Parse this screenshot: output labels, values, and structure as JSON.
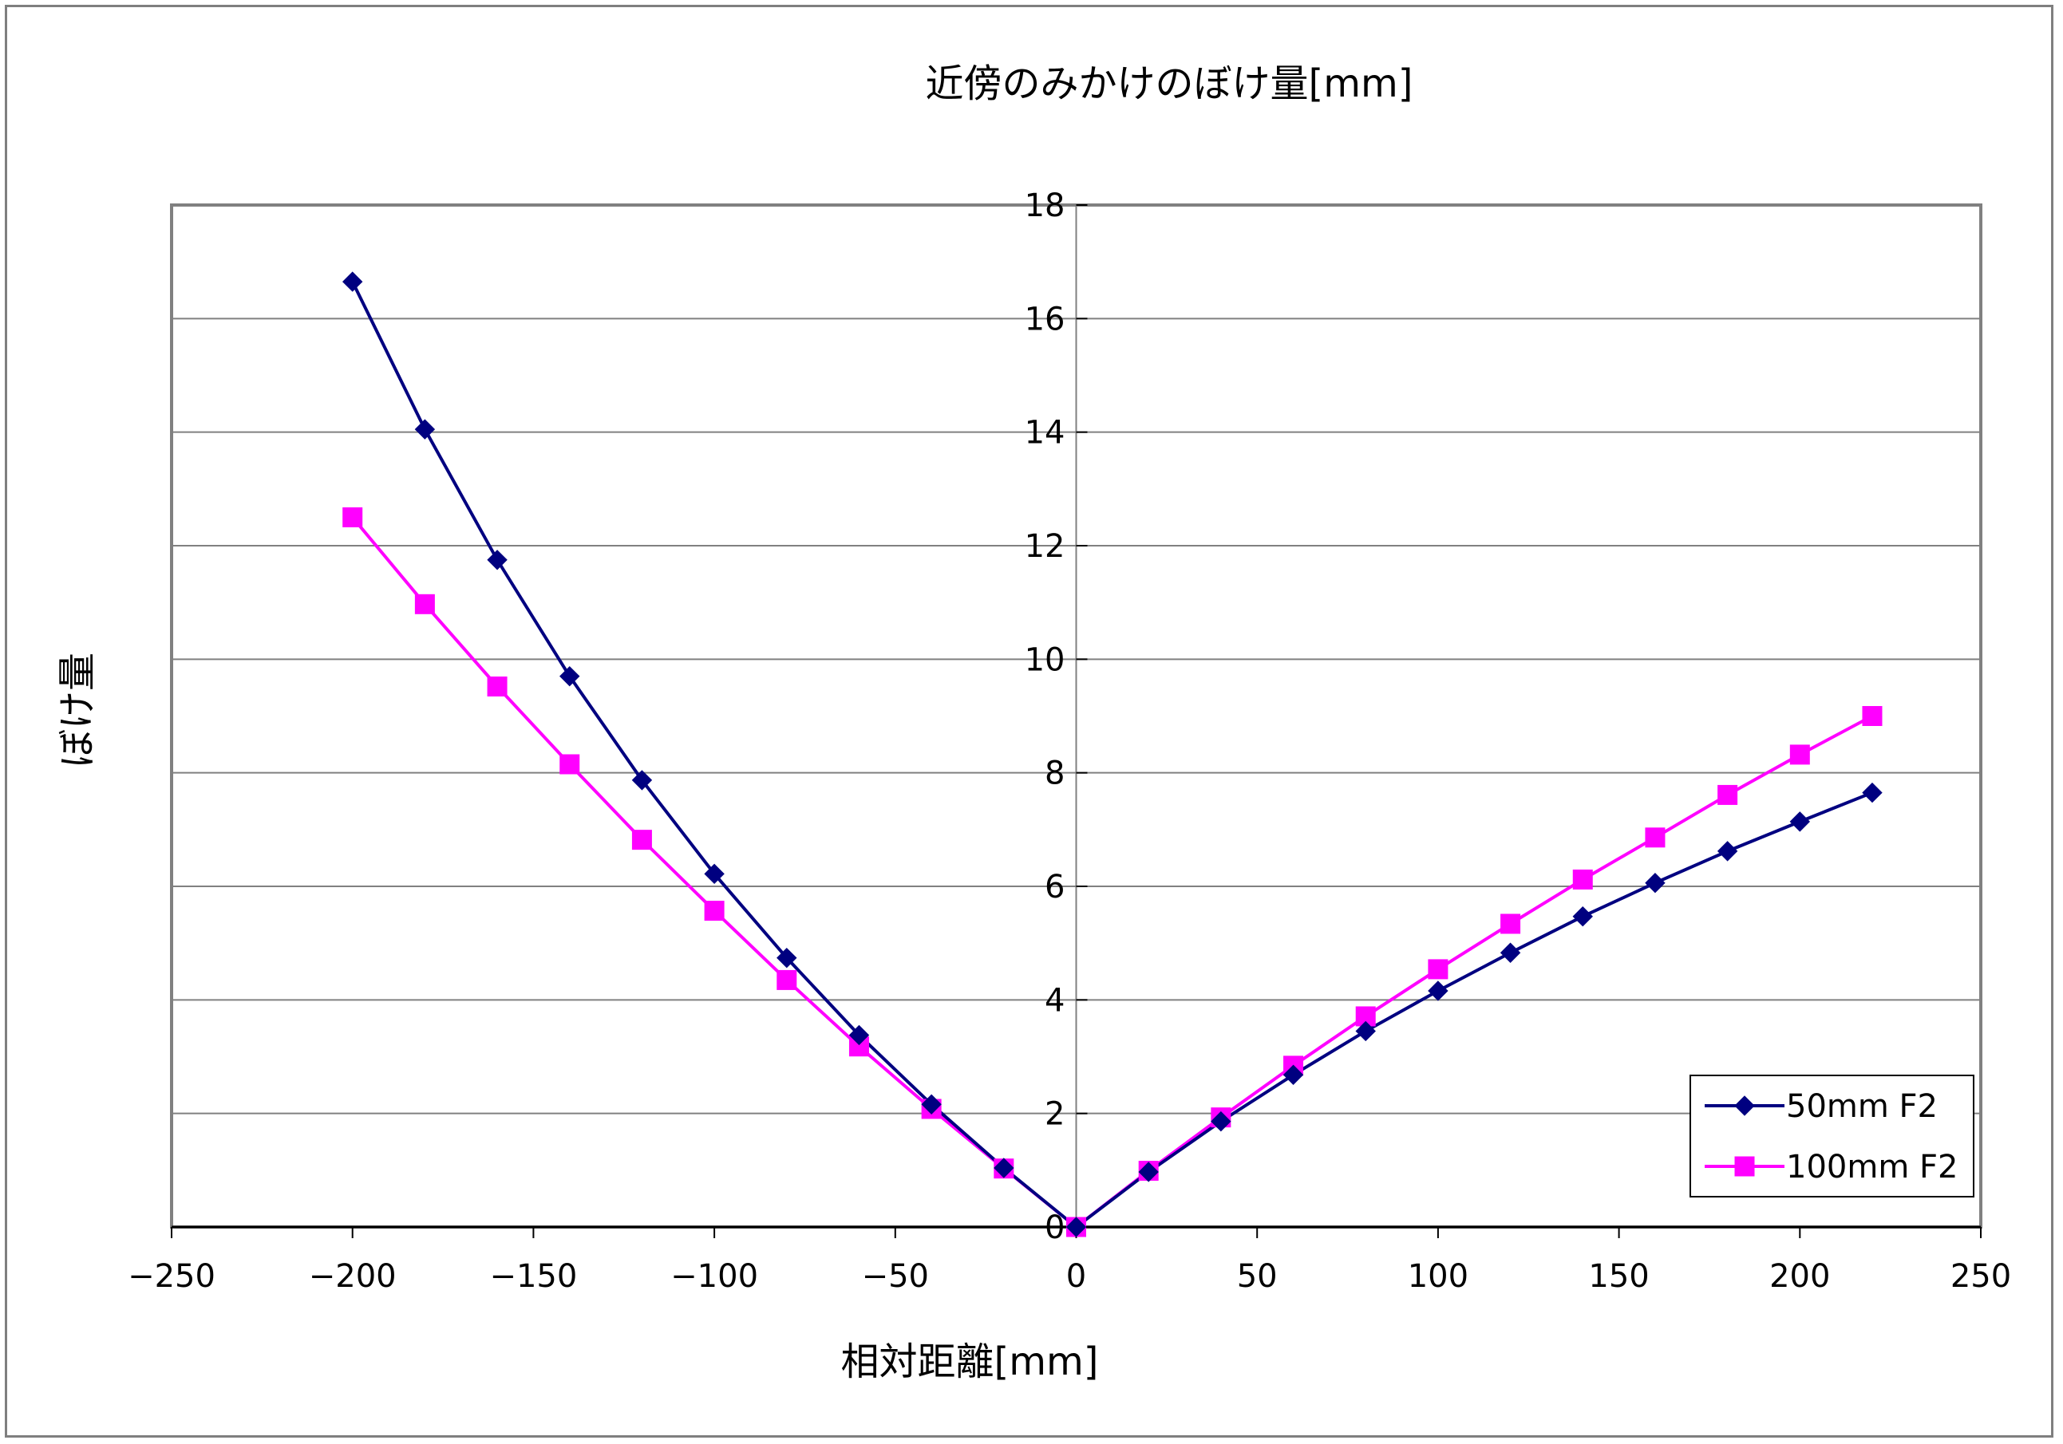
{
  "chart_data": {
    "type": "line",
    "title": "近傍のみかけのぼけ量[mm]",
    "xlabel": "相対距離[mm]",
    "ylabel": "ぼけ量",
    "xlim": [
      -250,
      250
    ],
    "ylim": [
      0,
      18
    ],
    "xticks": [
      -250,
      -200,
      -150,
      -100,
      -50,
      0,
      50,
      100,
      150,
      200,
      250
    ],
    "xtick_labels": [
      "−250",
      "−200",
      "−150",
      "−100",
      "−50",
      "0",
      "50",
      "100",
      "150",
      "200",
      "250"
    ],
    "yticks": [
      0,
      2,
      4,
      6,
      8,
      10,
      12,
      14,
      16,
      18
    ],
    "ytick_labels": [
      "0",
      "2",
      "4",
      "6",
      "8",
      "10",
      "12",
      "14",
      "16",
      "18"
    ],
    "grid": "horizontal",
    "legend_position": "bottom-right",
    "series": [
      {
        "name": "50mm F2",
        "color": "#000080",
        "marker": "diamond",
        "x": [
          -200,
          -180,
          -160,
          -140,
          -120,
          -100,
          -80,
          -60,
          -40,
          -20,
          0,
          20,
          40,
          60,
          80,
          100,
          120,
          140,
          160,
          180,
          200,
          220
        ],
        "y": [
          16.65,
          14.05,
          11.75,
          9.7,
          7.87,
          6.22,
          4.74,
          3.38,
          2.16,
          1.04,
          0,
          0.97,
          1.86,
          2.68,
          3.45,
          4.16,
          4.83,
          5.47,
          6.06,
          6.62,
          7.14,
          7.65
        ]
      },
      {
        "name": "100mm F2",
        "color": "#ff00ff",
        "marker": "square",
        "x": [
          -200,
          -180,
          -160,
          -140,
          -120,
          -100,
          -80,
          -60,
          -40,
          -20,
          0,
          20,
          40,
          60,
          80,
          100,
          120,
          140,
          160,
          180,
          200,
          220
        ],
        "y": [
          12.5,
          10.97,
          9.52,
          8.15,
          6.82,
          5.57,
          4.35,
          3.18,
          2.08,
          1.03,
          0,
          0.99,
          1.93,
          2.84,
          3.71,
          4.54,
          5.34,
          6.12,
          6.86,
          7.61,
          8.32,
          9.0
        ]
      }
    ]
  }
}
